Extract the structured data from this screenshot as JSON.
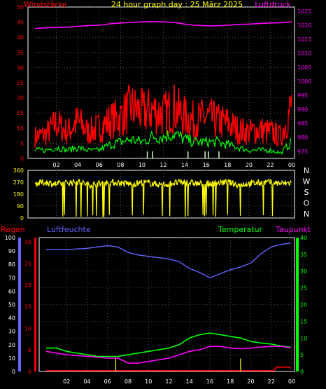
{
  "colors": {
    "red": "#ff0000",
    "green": "#00ff00",
    "magenta": "#ff00ff",
    "yellow": "#ffff00",
    "blue": "#6464ff",
    "white": "#ffffff",
    "grid": "#808080"
  },
  "chart_data": [
    {
      "type": "line",
      "title": "24 hour graph day : 25 März 2025",
      "left_label": "Windstärke",
      "right_label": "Luftdruck",
      "x_ticks": [
        "02",
        "04",
        "06",
        "08",
        "10",
        "12",
        "14",
        "16",
        "18",
        "20",
        "22",
        "00"
      ],
      "y_left_ticks": [
        "0",
        "5",
        "10",
        "15",
        "20",
        "25",
        "30",
        "35",
        "40",
        "45",
        "50"
      ],
      "y_left_range": [
        0,
        50
      ],
      "y_right_ticks": [
        "975",
        "980",
        "985",
        "990",
        "995",
        "1000",
        "1005",
        "1010",
        "1015",
        "1020",
        "1025"
      ],
      "y_right_range": [
        972.5,
        1026.5
      ],
      "grid": true,
      "series": [
        {
          "key": "gust",
          "color": "#ff0000",
          "note": "wind gusts, hourly approximate peaks",
          "x": [
            0,
            1,
            2,
            3,
            4,
            5,
            6,
            7,
            8,
            9,
            10,
            11,
            12,
            13,
            14,
            15,
            16,
            17,
            18,
            19,
            20,
            21,
            22,
            23,
            24
          ],
          "values": [
            10,
            11,
            16,
            12,
            17,
            12,
            14,
            17,
            19,
            23,
            21,
            22,
            20,
            23,
            19,
            17,
            19,
            17,
            16,
            13,
            12,
            13,
            12,
            10,
            24
          ]
        },
        {
          "key": "wind",
          "color": "#00ff00",
          "x": [
            0,
            1,
            2,
            3,
            4,
            5,
            6,
            7,
            8,
            9,
            10,
            11,
            12,
            13,
            14,
            15,
            16,
            17,
            18,
            19,
            20,
            21,
            22,
            23,
            24
          ],
          "values": [
            3,
            3,
            4,
            3,
            4,
            3,
            3,
            5,
            6,
            7,
            6,
            8,
            8,
            9,
            7,
            6,
            6,
            6,
            5,
            4,
            3,
            3,
            3,
            2,
            6
          ]
        },
        {
          "key": "pressure",
          "color": "#ff00ff",
          "x": [
            0,
            1,
            2,
            3,
            4,
            5,
            6,
            7,
            8,
            9,
            10,
            11,
            12,
            13,
            14,
            15,
            16,
            17,
            18,
            19,
            20,
            21,
            22,
            23,
            24
          ],
          "values": [
            1018.8,
            1019.1,
            1019.2,
            1019.3,
            1019.6,
            1019.9,
            1020.0,
            1020.5,
            1020.8,
            1021.0,
            1021.2,
            1021.3,
            1021.2,
            1021.0,
            1020.4,
            1020.0,
            1019.8,
            1019.8,
            1020.0,
            1020.3,
            1020.4,
            1020.6,
            1020.8,
            1020.9,
            1021.2
          ]
        }
      ]
    },
    {
      "type": "scatter",
      "right_labels": [
        "N",
        "W",
        "S",
        "O",
        "N"
      ],
      "y_ticks": [
        "0",
        "90",
        "180",
        "270",
        "360"
      ],
      "y_range": [
        0,
        360
      ],
      "x_ticks": [
        "02",
        "04",
        "06",
        "08",
        "10",
        "12",
        "14",
        "16",
        "18",
        "20",
        "22",
        "00"
      ],
      "series": [
        {
          "key": "direction",
          "color": "#ffff00",
          "x": [
            0,
            1,
            2,
            3,
            4,
            5,
            6,
            7,
            8,
            9,
            10,
            11,
            12,
            13,
            14,
            15,
            16,
            17,
            18,
            19,
            20,
            21,
            22,
            23,
            24
          ],
          "values": [
            260,
            270,
            255,
            265,
            275,
            250,
            260,
            270,
            265,
            255,
            270,
            260,
            250,
            265,
            270,
            260,
            255,
            265,
            270,
            250,
            260,
            265,
            270,
            260,
            265
          ]
        }
      ]
    },
    {
      "type": "line",
      "labels": {
        "regen": "Regen",
        "feuchte": "Luftfeuchte",
        "temperatur": "Temperatur",
        "taupunkt": "Taupunkt"
      },
      "y_outer_ticks": [
        "0",
        "10",
        "20",
        "30",
        "40",
        "50",
        "60",
        "70",
        "80",
        "90",
        "100"
      ],
      "y_outer_range": [
        0,
        100
      ],
      "y_inner_ticks": [
        "0",
        "5",
        "10",
        "15",
        "20",
        "25",
        "30"
      ],
      "y_inner_range": [
        0,
        31
      ],
      "y_right_ticks": [
        "0",
        "5",
        "10",
        "15",
        "20",
        "25",
        "30",
        "35",
        "40"
      ],
      "y_right_range": [
        0,
        40
      ],
      "x_ticks": [
        "02",
        "04",
        "06",
        "08",
        "10",
        "12",
        "14",
        "16",
        "18",
        "20",
        "22",
        "00"
      ],
      "grid": true,
      "series": [
        {
          "key": "humidity",
          "color": "#6464ff",
          "x": [
            0,
            2,
            4,
            6,
            7,
            8,
            9,
            10,
            11,
            12,
            13,
            14,
            15,
            16,
            17,
            18,
            19,
            20,
            21,
            22,
            23,
            24
          ],
          "values": [
            91,
            91,
            92,
            94,
            93,
            89,
            87,
            86,
            85,
            84,
            82,
            77,
            74,
            70,
            73,
            76,
            78,
            81,
            88,
            93,
            95,
            96
          ]
        },
        {
          "key": "temperature",
          "color": "#00ff00",
          "x": [
            0,
            1,
            2,
            4,
            5,
            6,
            7,
            8,
            9,
            10,
            11,
            12,
            13,
            14,
            15,
            16,
            17,
            18,
            19,
            20,
            21,
            22,
            23,
            24
          ],
          "values": [
            7,
            7,
            6,
            5,
            4.5,
            4.5,
            4.5,
            5,
            5.5,
            6,
            6.5,
            7,
            8,
            10,
            11,
            11.5,
            11,
            10.5,
            10,
            9,
            8.5,
            8.2,
            7.6,
            7.2
          ]
        },
        {
          "key": "dewpoint",
          "color": "#ff00ff",
          "x": [
            0,
            2,
            4,
            6,
            7,
            8,
            9,
            10,
            11,
            12,
            13,
            14,
            15,
            16,
            17,
            18,
            19,
            20,
            21,
            22,
            23,
            24
          ],
          "values": [
            6,
            5,
            4.5,
            4,
            4,
            2.5,
            2.5,
            3,
            3.5,
            4,
            5,
            6,
            6.5,
            7.5,
            7.5,
            7,
            6.8,
            7,
            7.3,
            7.5,
            7.5,
            7
          ]
        },
        {
          "key": "rain",
          "color": "#ff0000",
          "x": [
            0,
            22.3,
            22.5,
            23.8,
            24
          ],
          "values": [
            0.2,
            0.2,
            1,
            1,
            0.4
          ]
        },
        {
          "key": "rain_events",
          "color": "#ffff00",
          "x": [
            6.8,
            19
          ],
          "values": [
            3,
            3
          ]
        }
      ]
    }
  ]
}
